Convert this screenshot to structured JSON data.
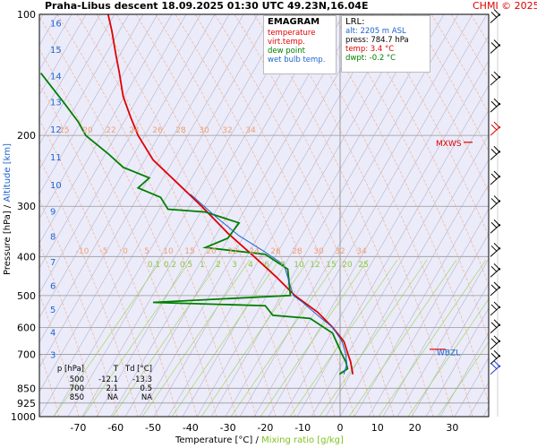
{
  "header": {
    "title": "Praha-Libus   descent   18.09.2025 01:30 UTC  49.23N,16.04E",
    "copyright": "CHMI © 2025"
  },
  "legend": {
    "title": "EMAGRAM",
    "items": [
      {
        "label": "temperature",
        "color": "#e00000"
      },
      {
        "label": "virt.temp.",
        "color": "#e00000"
      },
      {
        "label": "dew point",
        "color": "#008000"
      },
      {
        "label": "wet bulb temp.",
        "color": "#1e64d0"
      }
    ]
  },
  "lrl": {
    "title": "LRL:",
    "alt": "alt: 2205 m ASL",
    "press": "press: 784.7 hPa",
    "temp": "temp: 3.4 °C",
    "dwpt": "dwpt: -0.2 °C"
  },
  "levels_table": {
    "headers": [
      "p [hPa]",
      "T",
      "Td [°C]"
    ],
    "rows": [
      [
        "500",
        "-12.1",
        "-13.3"
      ],
      [
        "700",
        "2.1",
        "0.5"
      ],
      [
        "850",
        "NA",
        "NA"
      ]
    ]
  },
  "axes": {
    "xlabel_main": "Temperature [°C]",
    "xlabel_sep": "/",
    "xlabel_mix": "Mixing ratio [g/kg]",
    "ylabel_pressure": "Pressure [hPa]",
    "ylabel_sep": "/",
    "ylabel_alt": "Altitude [km]"
  },
  "markers": {
    "mxws": "MXWS",
    "wbzl": "WBZL"
  },
  "chart_data": {
    "type": "line",
    "y_scale": "log-pressure",
    "ylim": [
      1000,
      100
    ],
    "xlim": [
      -80,
      40
    ],
    "pressure_ticks": [
      100,
      200,
      300,
      400,
      500,
      600,
      700,
      850,
      925,
      1000
    ],
    "temperature_ticks": [
      -70,
      -60,
      -50,
      -40,
      -30,
      -20,
      -10,
      0,
      10,
      20,
      30
    ],
    "altitude_ticks": [
      {
        "label": "16",
        "p": 105
      },
      {
        "label": "15",
        "p": 122
      },
      {
        "label": "14",
        "p": 142
      },
      {
        "label": "13",
        "p": 165
      },
      {
        "label": "12",
        "p": 193
      },
      {
        "label": "11",
        "p": 226
      },
      {
        "label": "10",
        "p": 265
      },
      {
        "label": "9",
        "p": 308
      },
      {
        "label": "8",
        "p": 356
      },
      {
        "label": "7",
        "p": 412
      },
      {
        "label": "6",
        "p": 472
      },
      {
        "label": "5",
        "p": 540
      },
      {
        "label": "4",
        "p": 616
      },
      {
        "label": "3",
        "p": 700
      }
    ],
    "mixing_ratio_labels": [
      "0.1",
      "0.2",
      "0.5",
      "1",
      "2",
      "3",
      "4",
      "6",
      "8",
      "10",
      "12",
      "15",
      "20",
      "25"
    ],
    "dry_adiabat_labels_upper": [
      "15",
      "20",
      "22",
      "24",
      "26",
      "28",
      "30",
      "32",
      "34"
    ],
    "dry_adiabat_labels_lower": [
      "-10",
      "-5",
      "0",
      "5",
      "10",
      "15",
      "20",
      "22",
      "24",
      "26",
      "28",
      "30",
      "32",
      "34"
    ],
    "series": [
      {
        "name": "temperature",
        "color": "#e00000",
        "points": [
          [
            -62,
            100
          ],
          [
            -61,
            110
          ],
          [
            -60,
            125
          ],
          [
            -59,
            140
          ],
          [
            -58,
            160
          ],
          [
            -56,
            180
          ],
          [
            -54,
            200
          ],
          [
            -50,
            230
          ],
          [
            -44,
            260
          ],
          [
            -37,
            300
          ],
          [
            -30,
            350
          ],
          [
            -23,
            400
          ],
          [
            -17,
            450
          ],
          [
            -12.1,
            500
          ],
          [
            -6,
            550
          ],
          [
            -2,
            600
          ],
          [
            1,
            650
          ],
          [
            2.1,
            700
          ],
          [
            2.8,
            730
          ],
          [
            3.4,
            784.7
          ]
        ]
      },
      {
        "name": "dew point",
        "color": "#008000",
        "points": [
          [
            -80,
            140
          ],
          [
            -74,
            165
          ],
          [
            -70,
            185
          ],
          [
            -68,
            200
          ],
          [
            -62,
            222
          ],
          [
            -58,
            240
          ],
          [
            -51,
            255
          ],
          [
            -54,
            270
          ],
          [
            -48,
            285
          ],
          [
            -46,
            305
          ],
          [
            -36,
            310
          ],
          [
            -27,
            330
          ],
          [
            -30,
            360
          ],
          [
            -36,
            380
          ],
          [
            -20,
            395
          ],
          [
            -14,
            430
          ],
          [
            -13.3,
            500
          ],
          [
            -50,
            520
          ],
          [
            -20,
            530
          ],
          [
            -18,
            560
          ],
          [
            -8,
            570
          ],
          [
            -2,
            620
          ],
          [
            0.5,
            700
          ],
          [
            1.5,
            730
          ],
          [
            2,
            760
          ],
          [
            -0.2,
            784.7
          ]
        ]
      },
      {
        "name": "wet bulb temp.",
        "color": "#1e64d0",
        "points": [
          [
            -40,
            280
          ],
          [
            -33,
            320
          ],
          [
            -27,
            355
          ],
          [
            -20,
            390
          ],
          [
            -15,
            420
          ],
          [
            -12.5,
            500
          ],
          [
            -10,
            520
          ],
          [
            -6,
            560
          ],
          [
            -2,
            600
          ],
          [
            0.5,
            650
          ],
          [
            1.5,
            700
          ],
          [
            1.8,
            740
          ],
          [
            1,
            784.7
          ]
        ]
      }
    ],
    "wind_barbs": [
      {
        "p": 105
      },
      {
        "p": 125
      },
      {
        "p": 150
      },
      {
        "p": 175
      },
      {
        "p": 200
      },
      {
        "p": 230
      },
      {
        "p": 265
      },
      {
        "p": 305
      },
      {
        "p": 350
      },
      {
        "p": 400
      },
      {
        "p": 450
      },
      {
        "p": 500
      },
      {
        "p": 560
      },
      {
        "p": 620
      },
      {
        "p": 680
      },
      {
        "p": 740
      },
      {
        "p": 784.7
      }
    ]
  }
}
